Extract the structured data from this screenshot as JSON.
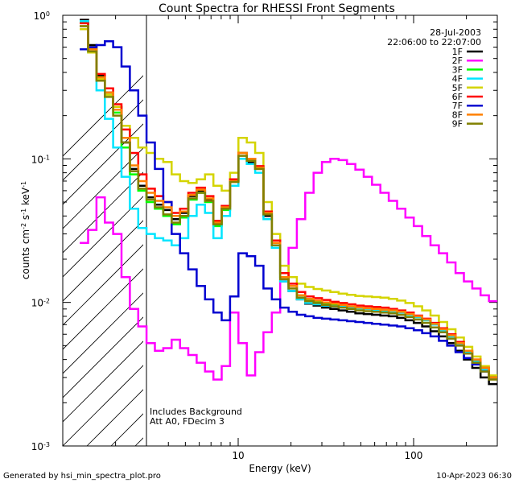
{
  "chart_data": {
    "type": "line",
    "title": "Count Spectra for RHESSI Front Segments",
    "xlabel": "Energy (keV)",
    "ylabel_main": "counts cm",
    "ylabel_exp1": "-2",
    "ylabel_mid": " s",
    "ylabel_exp2": "-1",
    "ylabel_end": " keV",
    "ylabel_exp3": "-1",
    "x_scale": "log",
    "y_scale": "log",
    "xlim": [
      1.0,
      300.0
    ],
    "ylim": [
      0.001,
      1.0
    ],
    "x_ticks": [
      {
        "value": 10,
        "label": "10"
      },
      {
        "value": 100,
        "label": "100"
      }
    ],
    "y_ticks": [
      {
        "value": 1.0,
        "base": "10",
        "exp": "0"
      },
      {
        "value": 0.1,
        "base": "10",
        "exp": "-1"
      },
      {
        "value": 0.01,
        "base": "10",
        "exp": "-2"
      },
      {
        "value": 0.001,
        "base": "10",
        "exp": "-3"
      }
    ],
    "shaded_region": {
      "x_from": 1.0,
      "x_to": 3.0
    },
    "date": "28-Jul-2003",
    "time_range": "22:06:00 to 22:07:00",
    "annotation_line1": "Includes Background",
    "annotation_line2": "Att A0, FDecim 3",
    "legend_position": "top-right",
    "series": [
      {
        "name": "1F",
        "color": "#000000",
        "values": [
          0.93,
          0.62,
          0.38,
          0.29,
          0.23,
          0.13,
          0.085,
          0.065,
          0.054,
          0.048,
          0.044,
          0.038,
          0.042,
          0.055,
          0.06,
          0.052,
          0.035,
          0.045,
          0.07,
          0.1,
          0.095,
          0.085,
          0.04,
          0.025,
          0.014,
          0.012,
          0.0105,
          0.0098,
          0.0095,
          0.0092,
          0.009,
          0.0088,
          0.0086,
          0.0084,
          0.0083,
          0.0082,
          0.0081,
          0.008,
          0.0078,
          0.0075,
          0.0072,
          0.0068,
          0.0063,
          0.0058,
          0.0052,
          0.0046,
          0.004,
          0.0035,
          0.003,
          0.0027
        ]
      },
      {
        "name": "2F",
        "color": "#ff00ff",
        "values": [
          0.026,
          0.032,
          0.054,
          0.036,
          0.03,
          0.015,
          0.009,
          0.0068,
          0.0052,
          0.0046,
          0.0048,
          0.0055,
          0.0048,
          0.0043,
          0.0038,
          0.0033,
          0.0029,
          0.0036,
          0.0085,
          0.0052,
          0.0031,
          0.0045,
          0.0062,
          0.0085,
          0.014,
          0.024,
          0.038,
          0.058,
          0.08,
          0.095,
          0.1,
          0.098,
          0.092,
          0.084,
          0.075,
          0.066,
          0.058,
          0.051,
          0.045,
          0.039,
          0.034,
          0.029,
          0.025,
          0.022,
          0.019,
          0.016,
          0.014,
          0.0125,
          0.0112,
          0.0102
        ]
      },
      {
        "name": "3F",
        "color": "#00ff00",
        "values": [
          0.89,
          0.6,
          0.37,
          0.28,
          0.21,
          0.12,
          0.078,
          0.06,
          0.05,
          0.045,
          0.04,
          0.035,
          0.039,
          0.052,
          0.058,
          0.05,
          0.034,
          0.044,
          0.07,
          0.11,
          0.1,
          0.088,
          0.042,
          0.026,
          0.015,
          0.013,
          0.0112,
          0.0105,
          0.0102,
          0.0099,
          0.0097,
          0.0095,
          0.0093,
          0.0091,
          0.009,
          0.0089,
          0.0088,
          0.0087,
          0.0085,
          0.0082,
          0.0079,
          0.0075,
          0.007,
          0.0064,
          0.0058,
          0.0051,
          0.0045,
          0.0039,
          0.0034,
          0.003
        ]
      },
      {
        "name": "4F",
        "color": "#00e5ff",
        "values": [
          0.91,
          0.55,
          0.3,
          0.19,
          0.12,
          0.075,
          0.045,
          0.033,
          0.03,
          0.028,
          0.027,
          0.025,
          0.028,
          0.04,
          0.048,
          0.042,
          0.028,
          0.04,
          0.065,
          0.1,
          0.092,
          0.08,
          0.038,
          0.024,
          0.014,
          0.012,
          0.0105,
          0.0099,
          0.0097,
          0.0095,
          0.0094,
          0.0093,
          0.0092,
          0.0091,
          0.009,
          0.0089,
          0.0088,
          0.0087,
          0.0085,
          0.0082,
          0.0079,
          0.0075,
          0.007,
          0.0064,
          0.0058,
          0.0051,
          0.0045,
          0.0039,
          0.0034,
          0.003
        ]
      },
      {
        "name": "5F",
        "color": "#d4d400",
        "values": [
          0.8,
          0.55,
          0.36,
          0.28,
          0.23,
          0.17,
          0.14,
          0.12,
          0.11,
          0.1,
          0.095,
          0.078,
          0.07,
          0.068,
          0.072,
          0.078,
          0.065,
          0.06,
          0.08,
          0.14,
          0.13,
          0.11,
          0.05,
          0.03,
          0.018,
          0.015,
          0.0135,
          0.0128,
          0.0124,
          0.0121,
          0.0118,
          0.0115,
          0.0113,
          0.0111,
          0.011,
          0.0109,
          0.0108,
          0.0106,
          0.0103,
          0.0099,
          0.0094,
          0.0088,
          0.0081,
          0.0073,
          0.0065,
          0.0057,
          0.0049,
          0.0042,
          0.0036,
          0.0031
        ]
      },
      {
        "name": "6F",
        "color": "#ff0000",
        "values": [
          0.88,
          0.6,
          0.39,
          0.31,
          0.24,
          0.16,
          0.11,
          0.078,
          0.062,
          0.055,
          0.05,
          0.042,
          0.045,
          0.058,
          0.063,
          0.055,
          0.037,
          0.047,
          0.072,
          0.11,
          0.1,
          0.089,
          0.043,
          0.027,
          0.016,
          0.0135,
          0.0118,
          0.011,
          0.0107,
          0.0104,
          0.0101,
          0.0099,
          0.0097,
          0.0095,
          0.0094,
          0.0093,
          0.0092,
          0.009,
          0.0088,
          0.0085,
          0.0081,
          0.0077,
          0.0072,
          0.0066,
          0.006,
          0.0053,
          0.0046,
          0.004,
          0.0035,
          0.003
        ]
      },
      {
        "name": "7F",
        "color": "#0000d0",
        "values": [
          0.58,
          0.6,
          0.62,
          0.66,
          0.6,
          0.44,
          0.3,
          0.2,
          0.13,
          0.085,
          0.05,
          0.03,
          0.022,
          0.017,
          0.013,
          0.0105,
          0.0085,
          0.0075,
          0.011,
          0.022,
          0.021,
          0.018,
          0.0125,
          0.0105,
          0.0092,
          0.0086,
          0.0082,
          0.008,
          0.0078,
          0.0077,
          0.0076,
          0.0075,
          0.0074,
          0.0073,
          0.0072,
          0.0071,
          0.007,
          0.0069,
          0.0068,
          0.0066,
          0.0064,
          0.0061,
          0.0058,
          0.0054,
          0.005,
          0.0045,
          0.0041,
          0.0037,
          0.0033,
          0.003
        ]
      },
      {
        "name": "8F",
        "color": "#ff8000",
        "values": [
          0.84,
          0.58,
          0.37,
          0.29,
          0.22,
          0.14,
          0.09,
          0.07,
          0.058,
          0.051,
          0.046,
          0.04,
          0.043,
          0.056,
          0.061,
          0.053,
          0.036,
          0.046,
          0.07,
          0.11,
          0.1,
          0.087,
          0.042,
          0.026,
          0.015,
          0.013,
          0.0112,
          0.0106,
          0.0103,
          0.01,
          0.0098,
          0.0096,
          0.0094,
          0.0092,
          0.0091,
          0.009,
          0.0089,
          0.0088,
          0.0086,
          0.0083,
          0.008,
          0.0076,
          0.0071,
          0.0065,
          0.0059,
          0.0052,
          0.0046,
          0.004,
          0.0035,
          0.003
        ]
      },
      {
        "name": "9F",
        "color": "#808000",
        "values": [
          0.84,
          0.56,
          0.35,
          0.27,
          0.2,
          0.13,
          0.082,
          0.062,
          0.052,
          0.046,
          0.041,
          0.036,
          0.04,
          0.053,
          0.058,
          0.051,
          0.035,
          0.045,
          0.069,
          0.105,
          0.097,
          0.085,
          0.041,
          0.025,
          0.0145,
          0.0125,
          0.0108,
          0.0102,
          0.0099,
          0.0096,
          0.0094,
          0.0092,
          0.009,
          0.0088,
          0.0087,
          0.0086,
          0.0085,
          0.0084,
          0.0082,
          0.0079,
          0.0076,
          0.0072,
          0.0067,
          0.0062,
          0.0056,
          0.005,
          0.0044,
          0.0038,
          0.0033,
          0.0029
        ]
      }
    ]
  },
  "footer": {
    "generated_by": "Generated by hsi_min_spectra_plot.pro",
    "timestamp": "10-Apr-2023 06:30"
  }
}
